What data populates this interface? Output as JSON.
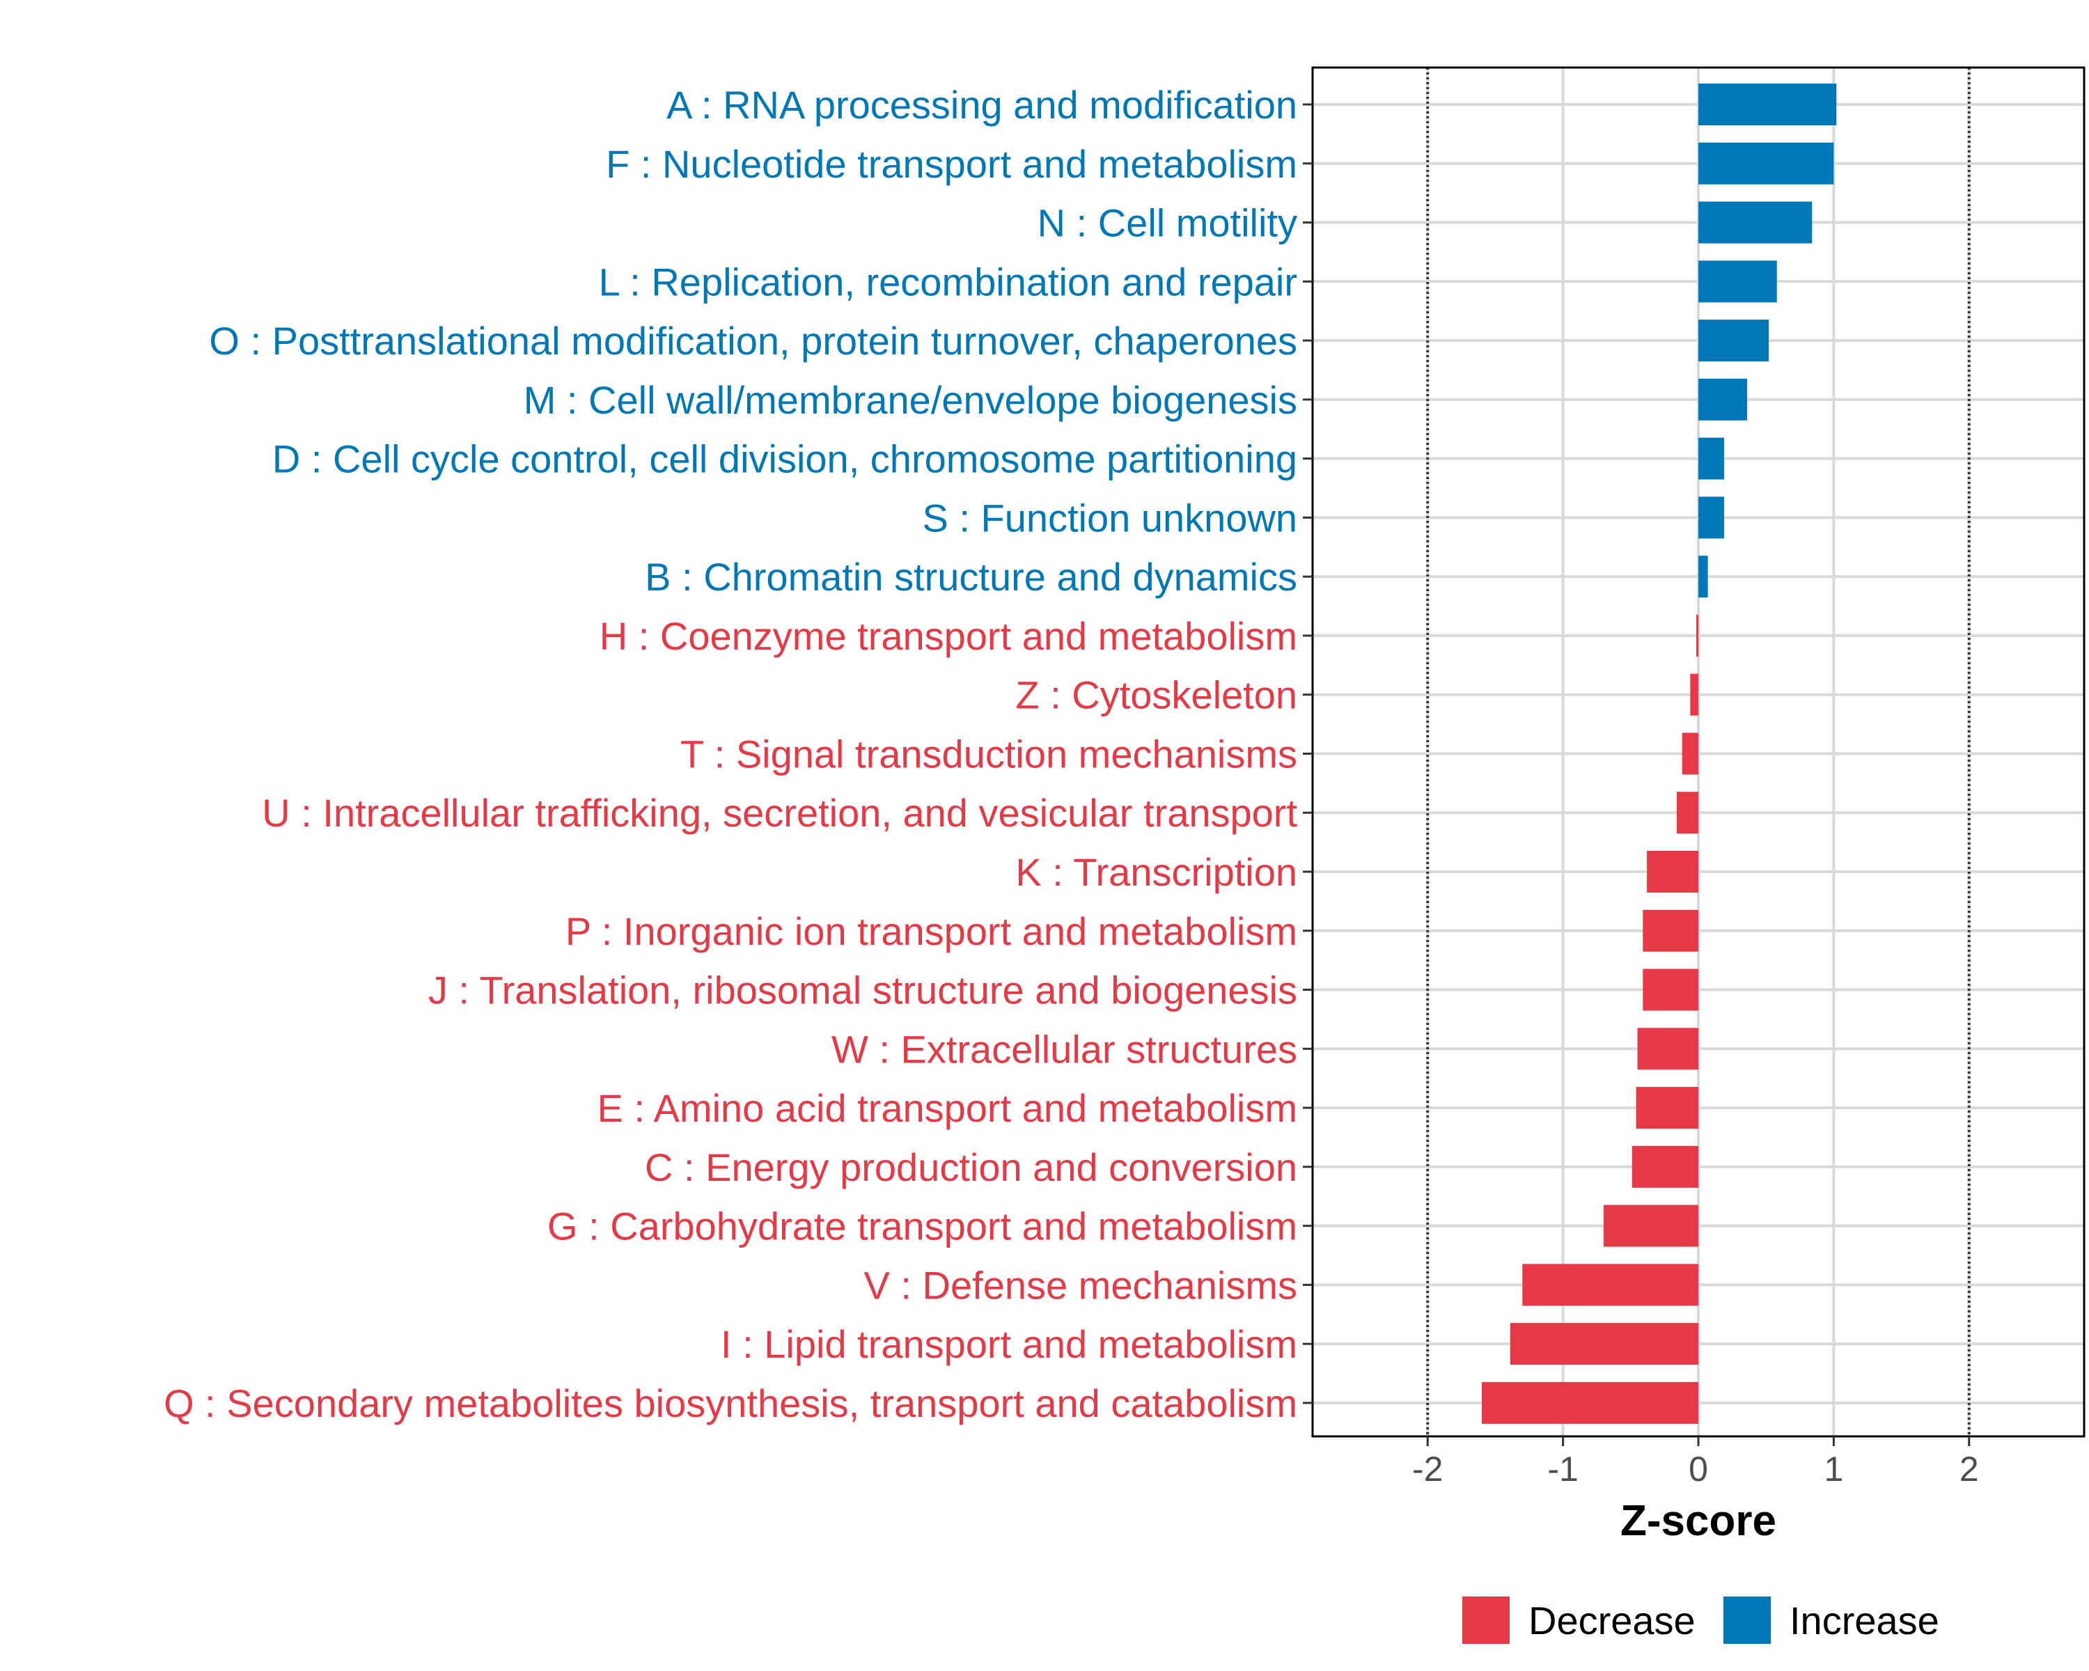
{
  "chart_data": {
    "type": "bar",
    "orientation": "horizontal",
    "title": "",
    "xlabel": "Z-score",
    "ylabel": "",
    "xlim": [
      -2.85,
      2.85
    ],
    "xticks": [
      -2,
      -1,
      0,
      1,
      2
    ],
    "xtick_labels": [
      "-2",
      "-1",
      "0",
      "1",
      "2"
    ],
    "reference_lines": [
      -2,
      2
    ],
    "grid": true,
    "legend": {
      "position": "bottom",
      "entries": [
        {
          "name": "Decrease",
          "color": "#e63946"
        },
        {
          "name": "Increase",
          "color": "#0077b6"
        }
      ]
    },
    "categories": [
      {
        "label": "A : RNA processing and modification",
        "value": 1.02,
        "group": "Increase"
      },
      {
        "label": "F : Nucleotide transport and metabolism",
        "value": 1.0,
        "group": "Increase"
      },
      {
        "label": "N : Cell motility",
        "value": 0.84,
        "group": "Increase"
      },
      {
        "label": "L : Replication, recombination and repair",
        "value": 0.58,
        "group": "Increase"
      },
      {
        "label": "O : Posttranslational modification, protein turnover, chaperones",
        "value": 0.52,
        "group": "Increase"
      },
      {
        "label": "M : Cell wall/membrane/envelope biogenesis",
        "value": 0.36,
        "group": "Increase"
      },
      {
        "label": "D : Cell cycle control, cell division, chromosome partitioning",
        "value": 0.19,
        "group": "Increase"
      },
      {
        "label": "S : Function unknown",
        "value": 0.19,
        "group": "Increase"
      },
      {
        "label": "B : Chromatin structure and dynamics",
        "value": 0.07,
        "group": "Increase"
      },
      {
        "label": "H : Coenzyme transport and metabolism",
        "value": -0.01,
        "group": "Decrease"
      },
      {
        "label": "Z : Cytoskeleton",
        "value": -0.06,
        "group": "Decrease"
      },
      {
        "label": "T : Signal transduction mechanisms",
        "value": -0.12,
        "group": "Decrease"
      },
      {
        "label": "U : Intracellular trafficking, secretion, and vesicular transport",
        "value": -0.16,
        "group": "Decrease"
      },
      {
        "label": "K : Transcription",
        "value": -0.38,
        "group": "Decrease"
      },
      {
        "label": "P : Inorganic ion transport and metabolism",
        "value": -0.41,
        "group": "Decrease"
      },
      {
        "label": "J : Translation, ribosomal structure and biogenesis",
        "value": -0.41,
        "group": "Decrease"
      },
      {
        "label": "W : Extracellular structures",
        "value": -0.45,
        "group": "Decrease"
      },
      {
        "label": "E : Amino acid transport and metabolism",
        "value": -0.46,
        "group": "Decrease"
      },
      {
        "label": "C : Energy production and conversion",
        "value": -0.49,
        "group": "Decrease"
      },
      {
        "label": "G : Carbohydrate transport and metabolism",
        "value": -0.7,
        "group": "Decrease"
      },
      {
        "label": "V : Defense mechanisms",
        "value": -1.3,
        "group": "Decrease"
      },
      {
        "label": "I : Lipid transport and metabolism",
        "value": -1.39,
        "group": "Decrease"
      },
      {
        "label": "Q : Secondary metabolites biosynthesis, transport and catabolism",
        "value": -1.6,
        "group": "Decrease"
      }
    ]
  }
}
